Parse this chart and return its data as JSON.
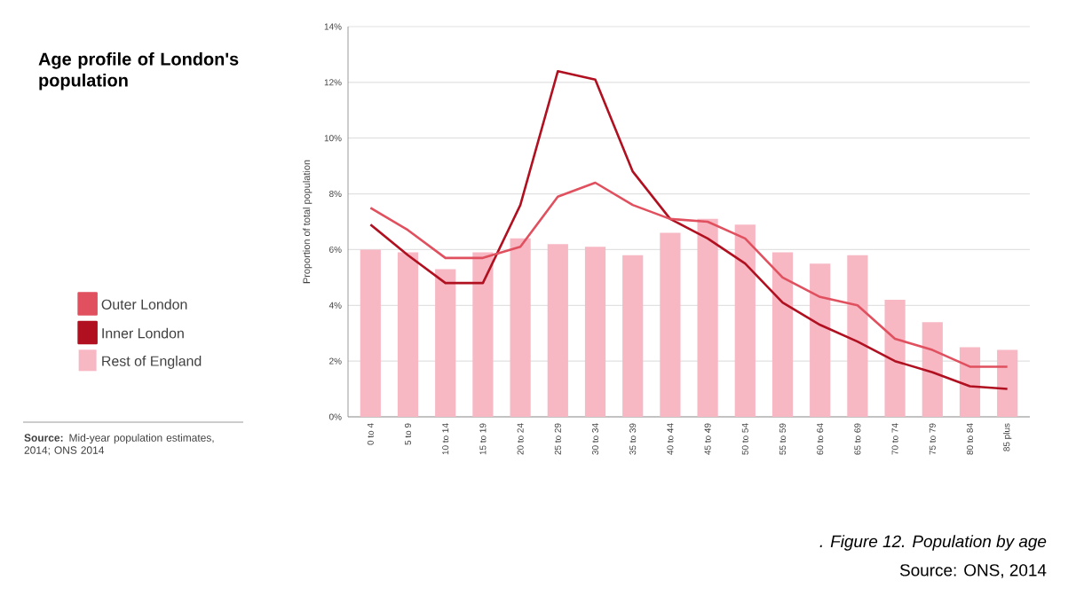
{
  "chart_data": {
    "type": "bar",
    "title": "Age profile of London's population",
    "ylabel": "Proportion of total population",
    "categories": [
      "0 to 4",
      "5 to 9",
      "10 to 14",
      "15 to 19",
      "20 to 24",
      "25 to 29",
      "30 to 34",
      "35 to 39",
      "40 to 44",
      "45 to 49",
      "50 to 54",
      "55 to 59",
      "60 to 64",
      "65 to 69",
      "70 to 74",
      "75 to 79",
      "80 to 84",
      "85 plus"
    ],
    "series": [
      {
        "name": "Outer London",
        "type": "line",
        "color": "#e0505e",
        "values": [
          7.5,
          6.7,
          5.7,
          5.7,
          6.1,
          7.9,
          8.4,
          7.6,
          7.1,
          7.0,
          6.4,
          5.0,
          4.3,
          4.0,
          2.8,
          2.4,
          1.8,
          1.8
        ]
      },
      {
        "name": "Inner London",
        "type": "line",
        "color": "#b01020",
        "values": [
          6.9,
          5.8,
          4.8,
          4.8,
          7.6,
          12.4,
          12.1,
          8.8,
          7.1,
          6.4,
          5.5,
          4.1,
          3.3,
          2.7,
          2.0,
          1.6,
          1.1,
          1.0
        ]
      },
      {
        "name": "Rest of England",
        "color": "#f7b8c4",
        "values": [
          6.0,
          5.9,
          5.3,
          5.9,
          6.4,
          6.2,
          6.1,
          5.8,
          6.6,
          7.1,
          6.9,
          5.9,
          5.5,
          5.8,
          4.2,
          3.4,
          2.5,
          2.4
        ]
      }
    ],
    "ylim": [
      0,
      14
    ],
    "yticks": [
      {
        "value": 0,
        "label": "0%"
      },
      {
        "value": 2,
        "label": "2%"
      },
      {
        "value": 4,
        "label": "4%"
      },
      {
        "value": 6,
        "label": "6%"
      },
      {
        "value": 8,
        "label": "8%"
      },
      {
        "value": 10,
        "label": "10%"
      },
      {
        "value": 12,
        "label": "12%"
      },
      {
        "value": 14,
        "label": "14%"
      }
    ],
    "grid": "y",
    "legend": "left",
    "annotations": [
      "**Source:** Mid-year population estimates, 2014; ONS 2014",
      ". Figure 12. Population by age",
      "Source: ONS, 2014"
    ]
  }
}
